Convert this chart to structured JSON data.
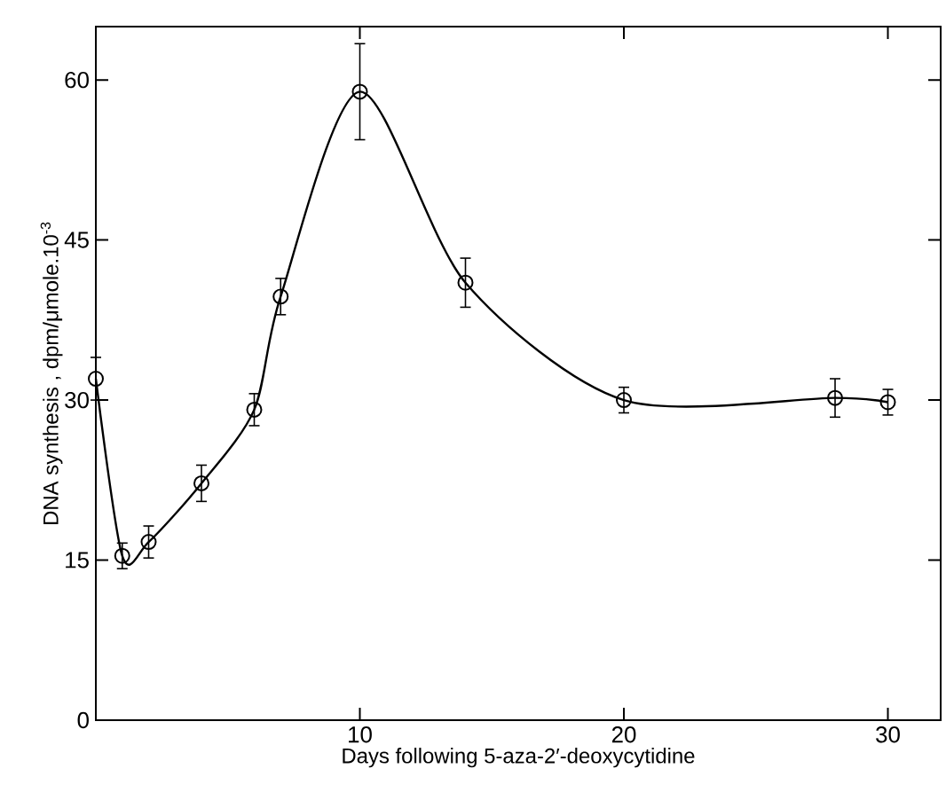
{
  "chart_data": {
    "type": "line",
    "xlabel": "Days following 5-aza-2′-deoxycytidine",
    "ylabel": "DNA synthesis , dpm/μmole.10$^{-3}$",
    "x": [
      0,
      1,
      2,
      4,
      6,
      7,
      10,
      14,
      20,
      28,
      30
    ],
    "series": [
      {
        "color": "#000000",
        "values": [
          32,
          15.4,
          16.7,
          22.2,
          29.1,
          39.7,
          58.9,
          41,
          30,
          30.2,
          29.8
        ],
        "errors": [
          2,
          1.2,
          1.5,
          1.7,
          1.5,
          1.7,
          4.5,
          2.3,
          1.2,
          1.8,
          1.2
        ]
      }
    ],
    "xlim": [
      0,
      32
    ],
    "ylim": [
      0,
      65
    ],
    "xticks": [
      10,
      20,
      30
    ],
    "yticks": [
      0,
      15,
      30,
      45,
      60
    ],
    "marker": "circle",
    "line_style": "solid"
  }
}
